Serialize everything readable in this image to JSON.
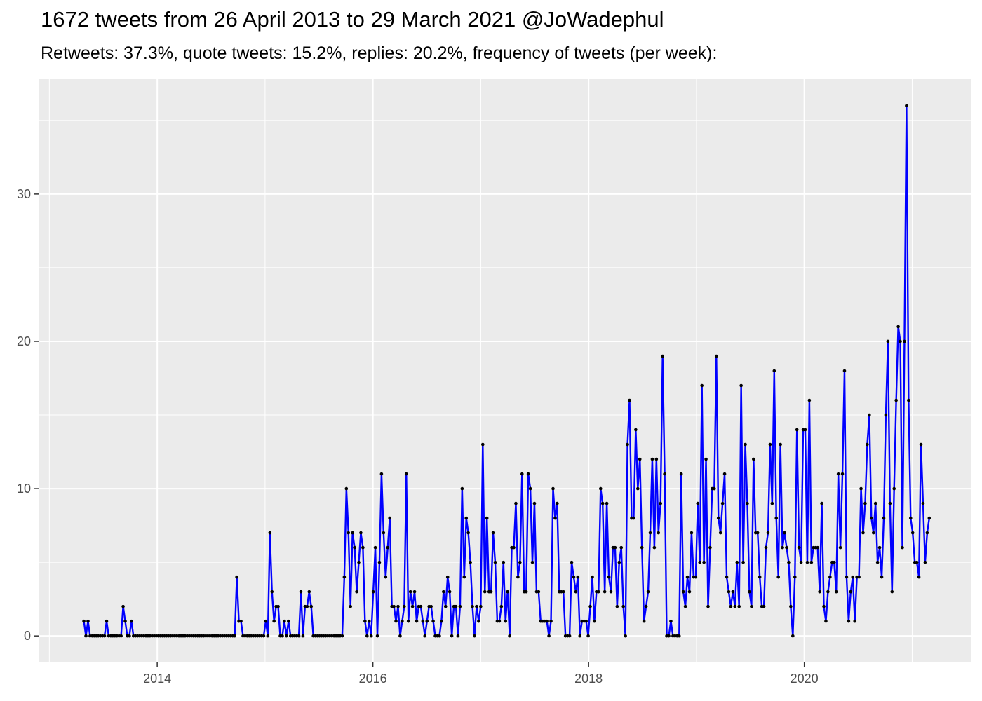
{
  "title": "1672 tweets from 26 April 2013 to 29 March 2021 @JoWadephul",
  "subtitle": "Retweets: 37.3%, quote tweets: 15.2%, replies: 20.2%, frequency of tweets (per week):",
  "colors": {
    "panel": "#ebebeb",
    "grid": "#ffffff",
    "line": "#0000ff",
    "point": "#000000",
    "tick_text": "#4d4d4d"
  },
  "chart_data": {
    "type": "line",
    "title": "1672 tweets from 26 April 2013 to 29 March 2021 @JoWadephul",
    "subtitle": "Retweets: 37.3%, quote tweets: 15.2%, replies: 20.2%, frequency of tweets (per week):",
    "xlabel": "",
    "ylabel": "",
    "x_ticks": [
      2014,
      2016,
      2018,
      2020
    ],
    "y_ticks": [
      0,
      10,
      20,
      30
    ],
    "xlim": [
      2012.9,
      2021.55
    ],
    "ylim": [
      -1.8,
      37.8
    ],
    "grid": true,
    "legend": "none",
    "x_start": 2013.32,
    "x_step_weeks": 1,
    "values": [
      1,
      0,
      1,
      0,
      0,
      0,
      0,
      0,
      0,
      0,
      0,
      1,
      0,
      0,
      0,
      0,
      0,
      0,
      0,
      2,
      1,
      0,
      0,
      1,
      0,
      0,
      0,
      0,
      0,
      0,
      0,
      0,
      0,
      0,
      0,
      0,
      0,
      0,
      0,
      0,
      0,
      0,
      0,
      0,
      0,
      0,
      0,
      0,
      0,
      0,
      0,
      0,
      0,
      0,
      0,
      0,
      0,
      0,
      0,
      0,
      0,
      0,
      0,
      0,
      0,
      0,
      0,
      0,
      0,
      0,
      0,
      0,
      0,
      0,
      4,
      1,
      1,
      0,
      0,
      0,
      0,
      0,
      0,
      0,
      0,
      0,
      0,
      0,
      1,
      0,
      7,
      3,
      1,
      2,
      2,
      0,
      0,
      1,
      0,
      1,
      0,
      0,
      0,
      0,
      0,
      3,
      0,
      2,
      2,
      3,
      2,
      0,
      0,
      0,
      0,
      0,
      0,
      0,
      0,
      0,
      0,
      0,
      0,
      0,
      0,
      0,
      4,
      10,
      7,
      2,
      7,
      6,
      3,
      5,
      7,
      6,
      1,
      0,
      1,
      0,
      3,
      6,
      0,
      5,
      11,
      7,
      4,
      6,
      8,
      2,
      2,
      1,
      2,
      0,
      1,
      2,
      11,
      1,
      3,
      2,
      3,
      1,
      2,
      2,
      1,
      0,
      1,
      2,
      2,
      1,
      0,
      0,
      0,
      1,
      3,
      2,
      4,
      3,
      0,
      2,
      2,
      0,
      2,
      10,
      4,
      8,
      7,
      5,
      2,
      0,
      2,
      1,
      2,
      13,
      3,
      8,
      3,
      3,
      7,
      5,
      1,
      1,
      2,
      5,
      1,
      3,
      0,
      6,
      6,
      9,
      4,
      5,
      11,
      3,
      3,
      11,
      10,
      5,
      9,
      3,
      3,
      1,
      1,
      1,
      1,
      0,
      1,
      10,
      8,
      9,
      3,
      3,
      3,
      0,
      0,
      0,
      5,
      4,
      3,
      4,
      0,
      1,
      1,
      1,
      0,
      2,
      4,
      1,
      3,
      3,
      10,
      9,
      3,
      9,
      4,
      3,
      6,
      6,
      2,
      5,
      6,
      2,
      0,
      13,
      16,
      8,
      8,
      14,
      10,
      12,
      6,
      1,
      2,
      3,
      7,
      12,
      6,
      12,
      7,
      9,
      19,
      11,
      0,
      0,
      1,
      0,
      0,
      0,
      0,
      11,
      3,
      2,
      4,
      3,
      7,
      4,
      4,
      9,
      5,
      17,
      5,
      12,
      2,
      6,
      10,
      10,
      19,
      8,
      7,
      9,
      11,
      4,
      3,
      2,
      3,
      2,
      5,
      2,
      17,
      5,
      13,
      9,
      3,
      2,
      12,
      7,
      7,
      4,
      2,
      2,
      6,
      7,
      13,
      9,
      18,
      8,
      4,
      13,
      6,
      7,
      6,
      5,
      2,
      0,
      4,
      14,
      6,
      5,
      14,
      14,
      5,
      16,
      5,
      6,
      6,
      6,
      3,
      9,
      2,
      1,
      3,
      4,
      5,
      5,
      3,
      11,
      6,
      11,
      18,
      4,
      1,
      3,
      4,
      1,
      4,
      4,
      10,
      7,
      9,
      13,
      15,
      8,
      7,
      9,
      5,
      6,
      4,
      8,
      15,
      20,
      9,
      3,
      10,
      16,
      21,
      20,
      6,
      20,
      36,
      16,
      8,
      7,
      5,
      5,
      4,
      13,
      9,
      5,
      7,
      8
    ]
  }
}
